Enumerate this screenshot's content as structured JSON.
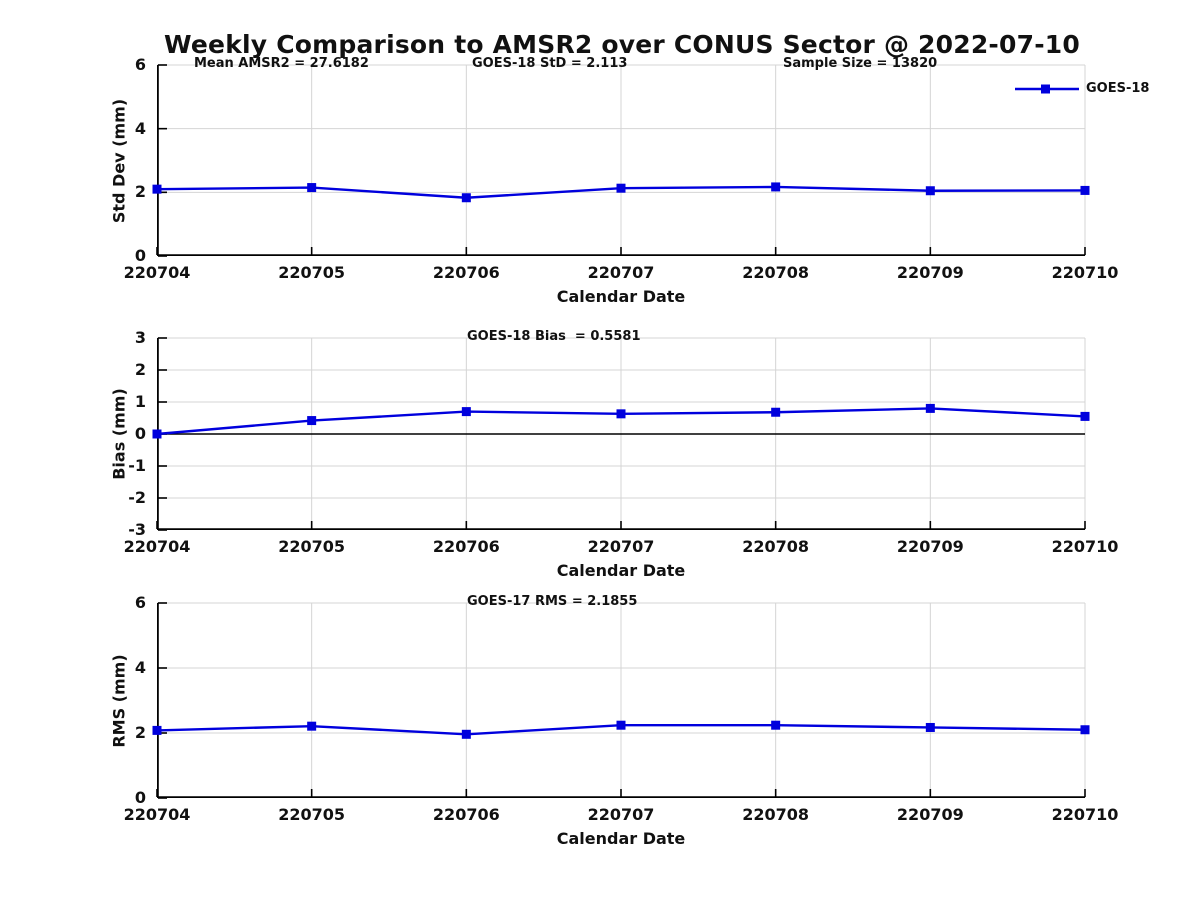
{
  "title": "Weekly Comparison to AMSR2 over CONUS Sector @ 2022-07-10",
  "colors": {
    "line": "#0000dd",
    "grid": "#d4d4d4",
    "axis": "#000000",
    "text": "#111111"
  },
  "legend": {
    "label": "GOES-18",
    "position": "top-right-inside"
  },
  "chart_data": [
    {
      "type": "line",
      "name": "std-dev",
      "categories": [
        "220704",
        "220705",
        "220706",
        "220707",
        "220708",
        "220709",
        "220710"
      ],
      "series": [
        {
          "name": "GOES-18",
          "values": [
            2.1,
            2.15,
            1.83,
            2.13,
            2.17,
            2.05,
            2.06
          ]
        }
      ],
      "xlabel": "Calendar Date",
      "ylabel": "Std Dev (mm)",
      "ylim": [
        0,
        6
      ],
      "yticks": [
        6,
        4,
        2,
        0
      ],
      "grid": true,
      "zero_line": false,
      "show_legend": true,
      "marker": "square",
      "annotations": [
        {
          "text": "Mean AMSR2 = 27.6182",
          "x": 194
        },
        {
          "text": "GOES-18 StD = 2.113",
          "x": 472
        },
        {
          "text": "Sample Size = 13820",
          "x": 783
        }
      ]
    },
    {
      "type": "line",
      "name": "bias",
      "categories": [
        "220704",
        "220705",
        "220706",
        "220707",
        "220708",
        "220709",
        "220710"
      ],
      "series": [
        {
          "name": "GOES-18",
          "values": [
            0.0,
            0.42,
            0.7,
            0.63,
            0.68,
            0.8,
            0.55
          ]
        }
      ],
      "xlabel": "Calendar Date",
      "ylabel": "Bias (mm)",
      "ylim": [
        -3,
        3
      ],
      "yticks": [
        3,
        2,
        1,
        0,
        -1,
        -2,
        -3
      ],
      "grid": true,
      "zero_line": true,
      "show_legend": false,
      "marker": "square",
      "annotations": [
        {
          "text": "GOES-18 Bias  = 0.5581",
          "x": 467
        }
      ]
    },
    {
      "type": "line",
      "name": "rms",
      "categories": [
        "220704",
        "220705",
        "220706",
        "220707",
        "220708",
        "220709",
        "220710"
      ],
      "series": [
        {
          "name": "GOES-18",
          "values": [
            2.08,
            2.21,
            1.96,
            2.24,
            2.24,
            2.17,
            2.1
          ]
        }
      ],
      "xlabel": "Calendar Date",
      "ylabel": "RMS (mm)",
      "ylim": [
        0,
        6
      ],
      "yticks": [
        6,
        4,
        2,
        0
      ],
      "grid": true,
      "zero_line": false,
      "show_legend": false,
      "marker": "square",
      "annotations": [
        {
          "text": "GOES-17 RMS = 2.1855",
          "x": 467
        }
      ]
    }
  ]
}
